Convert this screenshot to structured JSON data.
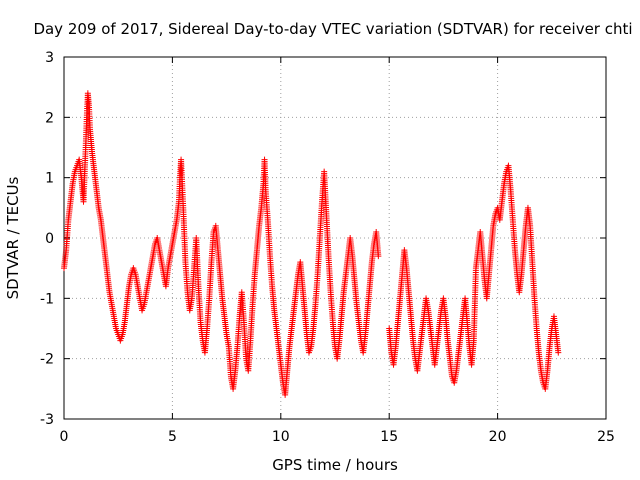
{
  "chart_data": {
    "type": "scatter",
    "title": "Day 209 of 2017, Sidereal Day-to-day VTEC variation (SDTVAR) for receiver chti",
    "xlabel": "GPS time / hours",
    "ylabel": "SDTVAR / TECUs",
    "xlim": [
      0,
      25
    ],
    "ylim": [
      -3,
      3
    ],
    "xticks": [
      0,
      5,
      10,
      15,
      20,
      25
    ],
    "yticks": [
      -3,
      -2,
      -1,
      0,
      1,
      2,
      3
    ],
    "grid": true,
    "marker": "+",
    "color": "#ff0000",
    "series": [
      {
        "name": "SDTVAR",
        "points": [
          [
            0.0,
            -0.5
          ],
          [
            0.1,
            -0.2
          ],
          [
            0.2,
            0.3
          ],
          [
            0.3,
            0.6
          ],
          [
            0.4,
            0.9
          ],
          [
            0.5,
            1.1
          ],
          [
            0.6,
            1.2
          ],
          [
            0.7,
            1.3
          ],
          [
            0.8,
            1.0
          ],
          [
            0.9,
            0.6
          ],
          [
            1.0,
            1.5
          ],
          [
            1.05,
            2.0
          ],
          [
            1.1,
            2.4
          ],
          [
            1.15,
            2.2
          ],
          [
            1.2,
            1.8
          ],
          [
            1.3,
            1.4
          ],
          [
            1.4,
            1.1
          ],
          [
            1.5,
            0.8
          ],
          [
            1.6,
            0.5
          ],
          [
            1.7,
            0.3
          ],
          [
            1.8,
            0.0
          ],
          [
            1.9,
            -0.3
          ],
          [
            2.0,
            -0.6
          ],
          [
            2.1,
            -0.9
          ],
          [
            2.2,
            -1.1
          ],
          [
            2.3,
            -1.3
          ],
          [
            2.4,
            -1.5
          ],
          [
            2.5,
            -1.6
          ],
          [
            2.6,
            -1.7
          ],
          [
            2.7,
            -1.6
          ],
          [
            2.8,
            -1.4
          ],
          [
            2.9,
            -1.1
          ],
          [
            3.0,
            -0.8
          ],
          [
            3.1,
            -0.6
          ],
          [
            3.2,
            -0.5
          ],
          [
            3.3,
            -0.6
          ],
          [
            3.4,
            -0.8
          ],
          [
            3.5,
            -1.0
          ],
          [
            3.6,
            -1.2
          ],
          [
            3.7,
            -1.1
          ],
          [
            3.8,
            -0.9
          ],
          [
            3.9,
            -0.7
          ],
          [
            4.0,
            -0.5
          ],
          [
            4.1,
            -0.3
          ],
          [
            4.2,
            -0.1
          ],
          [
            4.3,
            0.0
          ],
          [
            4.4,
            -0.2
          ],
          [
            4.5,
            -0.4
          ],
          [
            4.6,
            -0.6
          ],
          [
            4.7,
            -0.8
          ],
          [
            4.8,
            -0.5
          ],
          [
            4.9,
            -0.3
          ],
          [
            5.0,
            -0.1
          ],
          [
            5.1,
            0.1
          ],
          [
            5.2,
            0.3
          ],
          [
            5.3,
            0.6
          ],
          [
            5.35,
            1.0
          ],
          [
            5.4,
            1.3
          ],
          [
            5.5,
            0.5
          ],
          [
            5.6,
            -0.4
          ],
          [
            5.7,
            -0.9
          ],
          [
            5.8,
            -1.2
          ],
          [
            5.9,
            -1.0
          ],
          [
            6.0,
            -0.5
          ],
          [
            6.1,
            0.0
          ],
          [
            6.2,
            -0.8
          ],
          [
            6.3,
            -1.4
          ],
          [
            6.4,
            -1.7
          ],
          [
            6.5,
            -1.9
          ],
          [
            6.6,
            -1.5
          ],
          [
            6.7,
            -1.0
          ],
          [
            6.8,
            -0.4
          ],
          [
            6.9,
            0.1
          ],
          [
            7.0,
            0.2
          ],
          [
            7.1,
            -0.2
          ],
          [
            7.2,
            -0.6
          ],
          [
            7.3,
            -1.0
          ],
          [
            7.4,
            -1.3
          ],
          [
            7.5,
            -1.6
          ],
          [
            7.6,
            -1.8
          ],
          [
            7.7,
            -2.3
          ],
          [
            7.8,
            -2.5
          ],
          [
            7.9,
            -2.2
          ],
          [
            8.0,
            -1.8
          ],
          [
            8.1,
            -1.3
          ],
          [
            8.2,
            -0.9
          ],
          [
            8.3,
            -1.4
          ],
          [
            8.4,
            -2.0
          ],
          [
            8.5,
            -2.2
          ],
          [
            8.6,
            -1.7
          ],
          [
            8.7,
            -1.1
          ],
          [
            8.8,
            -0.6
          ],
          [
            8.9,
            -0.2
          ],
          [
            9.0,
            0.2
          ],
          [
            9.1,
            0.5
          ],
          [
            9.2,
            0.9
          ],
          [
            9.25,
            1.3
          ],
          [
            9.3,
            0.8
          ],
          [
            9.4,
            0.3
          ],
          [
            9.5,
            -0.3
          ],
          [
            9.6,
            -0.8
          ],
          [
            9.7,
            -1.2
          ],
          [
            9.8,
            -1.5
          ],
          [
            9.9,
            -1.8
          ],
          [
            10.0,
            -2.1
          ],
          [
            10.1,
            -2.4
          ],
          [
            10.2,
            -2.6
          ],
          [
            10.3,
            -2.2
          ],
          [
            10.4,
            -1.8
          ],
          [
            10.5,
            -1.5
          ],
          [
            10.6,
            -1.2
          ],
          [
            10.7,
            -0.9
          ],
          [
            10.8,
            -0.6
          ],
          [
            10.9,
            -0.4
          ],
          [
            11.0,
            -0.8
          ],
          [
            11.1,
            -1.2
          ],
          [
            11.2,
            -1.6
          ],
          [
            11.3,
            -1.9
          ],
          [
            11.4,
            -1.8
          ],
          [
            11.5,
            -1.5
          ],
          [
            11.6,
            -1.1
          ],
          [
            11.7,
            -0.6
          ],
          [
            11.8,
            0.0
          ],
          [
            11.9,
            0.6
          ],
          [
            12.0,
            1.1
          ],
          [
            12.1,
            0.4
          ],
          [
            12.2,
            -0.3
          ],
          [
            12.3,
            -0.9
          ],
          [
            12.4,
            -1.4
          ],
          [
            12.5,
            -1.8
          ],
          [
            12.6,
            -2.0
          ],
          [
            12.7,
            -1.7
          ],
          [
            12.8,
            -1.3
          ],
          [
            12.9,
            -0.9
          ],
          [
            13.0,
            -0.6
          ],
          [
            13.1,
            -0.3
          ],
          [
            13.2,
            0.0
          ],
          [
            13.3,
            -0.3
          ],
          [
            13.4,
            -0.7
          ],
          [
            13.5,
            -1.1
          ],
          [
            13.6,
            -1.4
          ],
          [
            13.7,
            -1.7
          ],
          [
            13.8,
            -1.9
          ],
          [
            13.9,
            -1.6
          ],
          [
            14.0,
            -1.2
          ],
          [
            14.1,
            -0.8
          ],
          [
            14.2,
            -0.4
          ],
          [
            14.3,
            -0.1
          ],
          [
            14.4,
            0.1
          ],
          [
            14.5,
            -0.3
          ],
          [
            15.0,
            -1.5
          ],
          [
            15.1,
            -1.9
          ],
          [
            15.2,
            -2.1
          ],
          [
            15.3,
            -1.8
          ],
          [
            15.4,
            -1.4
          ],
          [
            15.5,
            -1.0
          ],
          [
            15.6,
            -0.6
          ],
          [
            15.7,
            -0.2
          ],
          [
            15.8,
            -0.5
          ],
          [
            15.9,
            -0.9
          ],
          [
            16.0,
            -1.3
          ],
          [
            16.1,
            -1.7
          ],
          [
            16.2,
            -2.0
          ],
          [
            16.3,
            -2.2
          ],
          [
            16.4,
            -1.9
          ],
          [
            16.5,
            -1.6
          ],
          [
            16.6,
            -1.3
          ],
          [
            16.7,
            -1.0
          ],
          [
            16.8,
            -1.2
          ],
          [
            16.9,
            -1.5
          ],
          [
            17.0,
            -1.8
          ],
          [
            17.1,
            -2.1
          ],
          [
            17.2,
            -1.8
          ],
          [
            17.3,
            -1.5
          ],
          [
            17.4,
            -1.2
          ],
          [
            17.5,
            -1.0
          ],
          [
            17.6,
            -1.3
          ],
          [
            17.7,
            -1.7
          ],
          [
            17.8,
            -2.0
          ],
          [
            17.9,
            -2.3
          ],
          [
            18.0,
            -2.4
          ],
          [
            18.1,
            -2.2
          ],
          [
            18.2,
            -1.9
          ],
          [
            18.3,
            -1.6
          ],
          [
            18.4,
            -1.3
          ],
          [
            18.5,
            -1.0
          ],
          [
            18.6,
            -1.4
          ],
          [
            18.7,
            -1.8
          ],
          [
            18.8,
            -2.1
          ],
          [
            18.9,
            -1.7
          ],
          [
            19.0,
            -0.5
          ],
          [
            19.1,
            -0.2
          ],
          [
            19.2,
            0.1
          ],
          [
            19.3,
            -0.3
          ],
          [
            19.4,
            -0.7
          ],
          [
            19.5,
            -1.0
          ],
          [
            19.6,
            -0.6
          ],
          [
            19.7,
            -0.2
          ],
          [
            19.8,
            0.2
          ],
          [
            19.9,
            0.4
          ],
          [
            20.0,
            0.5
          ],
          [
            20.1,
            0.3
          ],
          [
            20.2,
            0.6
          ],
          [
            20.3,
            0.9
          ],
          [
            20.4,
            1.1
          ],
          [
            20.5,
            1.2
          ],
          [
            20.6,
            0.8
          ],
          [
            20.7,
            0.3
          ],
          [
            20.8,
            -0.2
          ],
          [
            20.9,
            -0.6
          ],
          [
            21.0,
            -0.9
          ],
          [
            21.1,
            -0.6
          ],
          [
            21.2,
            -0.2
          ],
          [
            21.3,
            0.2
          ],
          [
            21.4,
            0.5
          ],
          [
            21.5,
            0.2
          ],
          [
            21.6,
            -0.4
          ],
          [
            21.7,
            -1.0
          ],
          [
            21.8,
            -1.5
          ],
          [
            21.9,
            -1.9
          ],
          [
            22.0,
            -2.2
          ],
          [
            22.1,
            -2.4
          ],
          [
            22.2,
            -2.5
          ],
          [
            22.3,
            -2.2
          ],
          [
            22.4,
            -1.8
          ],
          [
            22.5,
            -1.5
          ],
          [
            22.6,
            -1.3
          ],
          [
            22.7,
            -1.6
          ],
          [
            22.8,
            -1.9
          ]
        ]
      }
    ]
  }
}
